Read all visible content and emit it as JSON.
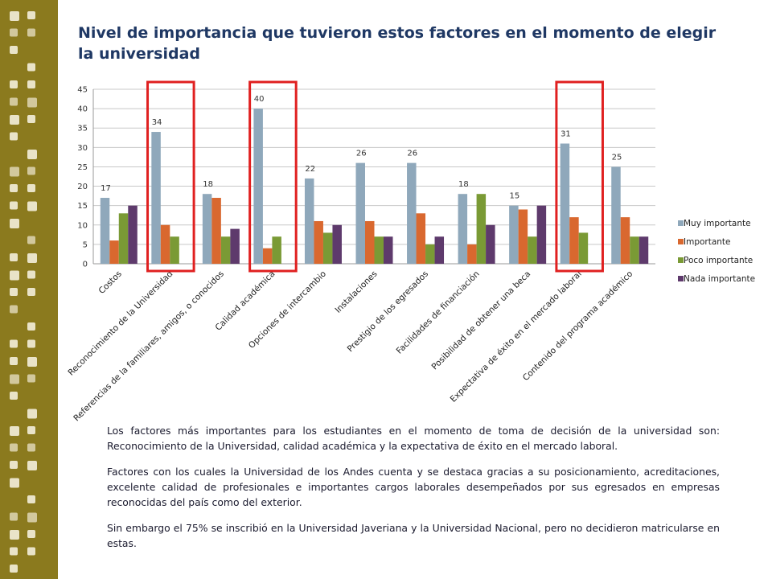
{
  "colors": {
    "sidebar_bg": "#8B7A1E",
    "sidebar_square": "#E9E3C8",
    "highlight_box": "#E02020",
    "title": "#1F3864",
    "series": [
      "#8FA8BB",
      "#D9682F",
      "#7A9A35",
      "#5E3A6C"
    ]
  },
  "slide": {
    "title": "Nivel de importancia que tuvieron estos factores en el momento de elegir la universidad",
    "paragraphs": [
      "Los factores más importantes para los estudiantes en el momento de toma de decisión de la universidad son: Reconocimiento de la Universidad,  calidad académica y la expectativa de éxito en el mercado laboral.",
      "Factores con los cuales la Universidad de los Andes cuenta y se destaca gracias a su posicionamiento, acreditaciones, excelente calidad de profesionales e importantes cargos laborales desempeñados por sus egresados en empresas reconocidas del país como del exterior.",
      "Sin embargo el 75% se inscribió en la Universidad Javeriana y la Universidad Nacional, pero no decidieron matricularse en estas."
    ]
  },
  "chart_data": {
    "type": "bar",
    "title": "",
    "xlabel": "",
    "ylabel": "",
    "ylim": [
      0,
      45
    ],
    "yticks": [
      0,
      5,
      10,
      15,
      20,
      25,
      30,
      35,
      40,
      45
    ],
    "grid": true,
    "legend_position": "right",
    "categories": [
      "Costos",
      "Reconocimiento de la Universidad",
      "Referencias de la familiares, amigos, o conocidos",
      "Calidad académica",
      "Opciones de intercambio",
      "Instalaciones",
      "Prestigio de los egresados",
      "Facilidades de financiación",
      "Posibilidad de obtener una beca",
      "Expectativa de éxito en el mercado laboral",
      "Contenido del programa académico"
    ],
    "series": [
      {
        "name": "Muy importante",
        "values": [
          17,
          34,
          18,
          40,
          22,
          26,
          26,
          18,
          15,
          31,
          25
        ]
      },
      {
        "name": "Importante",
        "values": [
          6,
          10,
          17,
          4,
          11,
          11,
          13,
          5,
          14,
          12,
          12
        ]
      },
      {
        "name": "Poco importante",
        "values": [
          13,
          7,
          7,
          7,
          8,
          7,
          5,
          18,
          7,
          8,
          7
        ]
      },
      {
        "name": "Nada importante",
        "values": [
          15,
          0,
          9,
          0,
          10,
          7,
          7,
          10,
          15,
          0,
          7
        ]
      }
    ],
    "data_labels": {
      "series": "Muy importante",
      "values": [
        "17",
        "34",
        "18",
        "40",
        "22",
        "26",
        "26",
        "18",
        "15",
        "31",
        "25"
      ]
    },
    "highlighted_categories": [
      "Reconocimiento de la Universidad",
      "Calidad académica",
      "Expectativa de éxito en el mercado laboral"
    ]
  }
}
